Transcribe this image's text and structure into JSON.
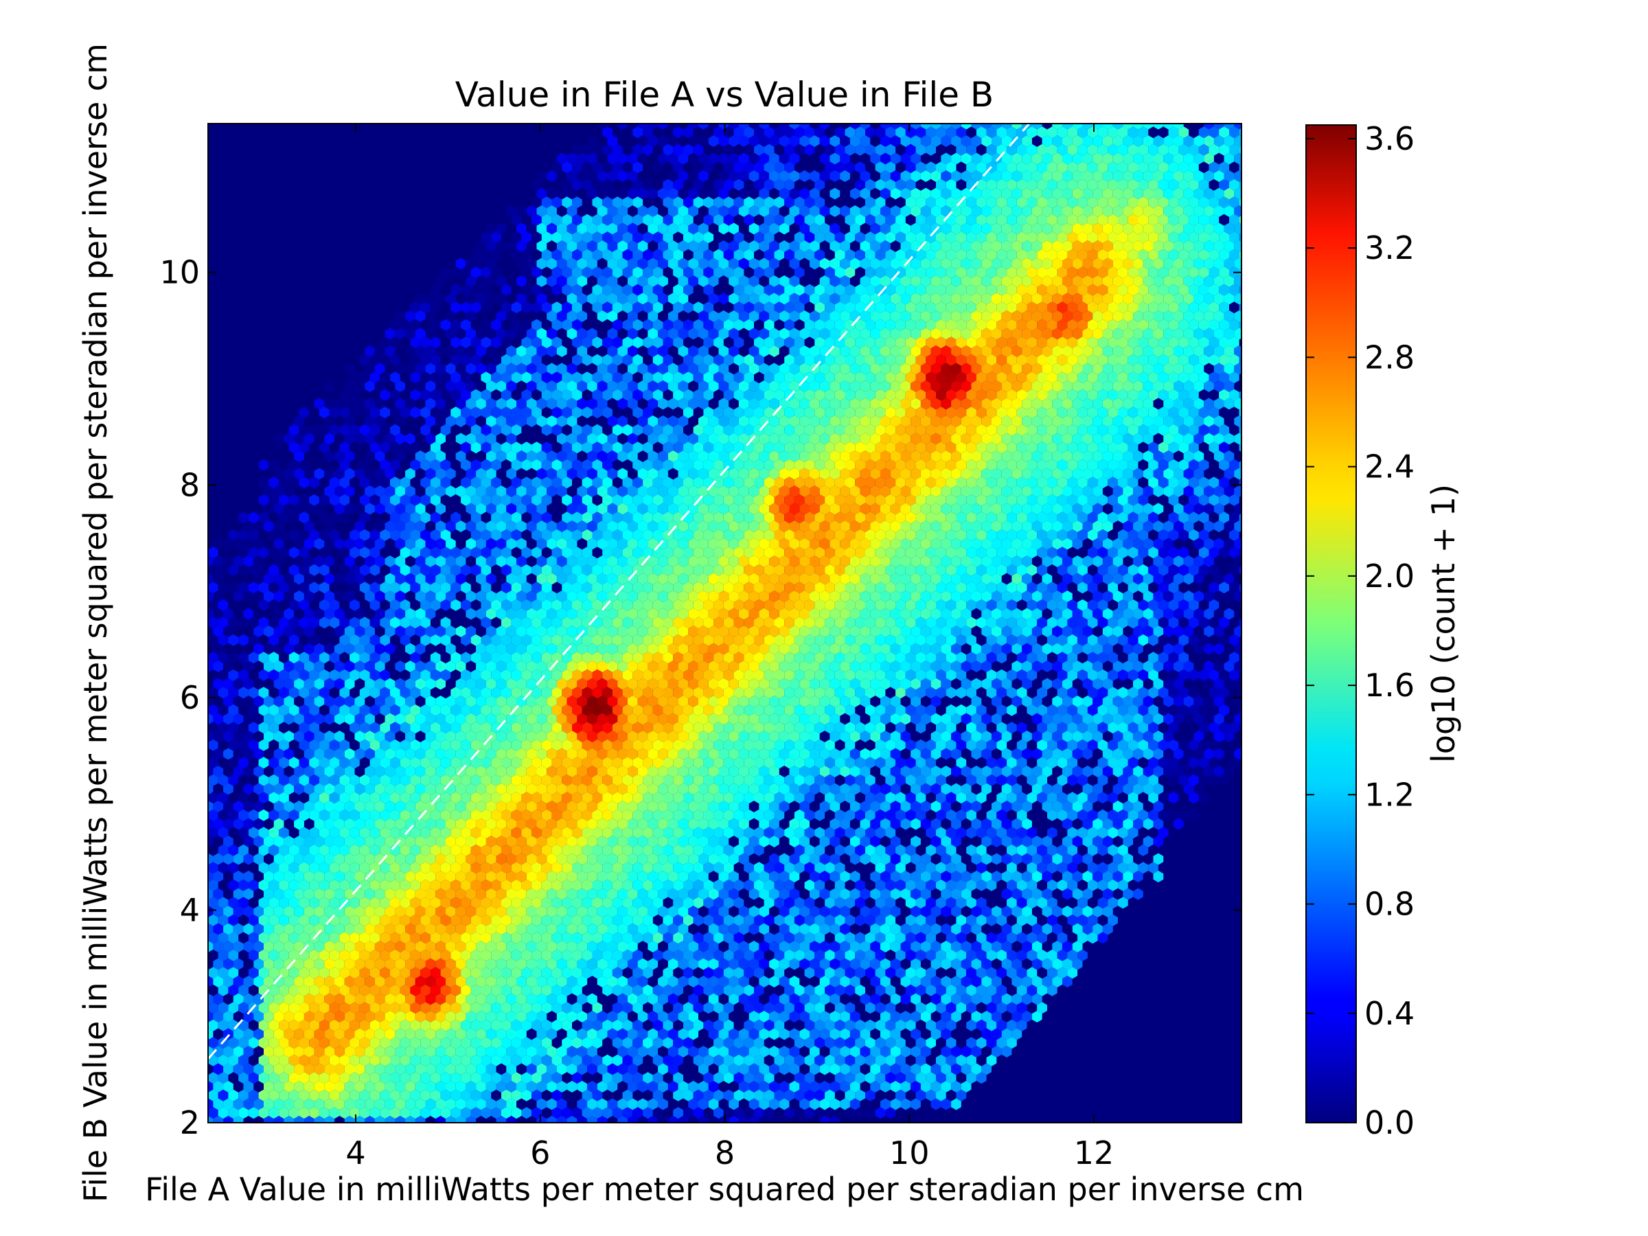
{
  "chart_data": {
    "type": "heatmap",
    "subtype": "hexbin",
    "title": "Value in File A vs Value in File B",
    "xlabel": "File A Value in milliWatts per meter squared per steradian per inverse cm",
    "ylabel": "File B Value in milliWatts per meter squared per steradian per inverse cm",
    "xlim": [
      2.4,
      13.6
    ],
    "ylim": [
      2.0,
      11.4
    ],
    "x_ticks": [
      4,
      6,
      8,
      10,
      12
    ],
    "y_ticks": [
      2,
      4,
      6,
      8,
      10
    ],
    "colormap": "jet",
    "background_color": "#00007f",
    "colorbar": {
      "label": "log10 (count + 1)",
      "range": [
        0.0,
        3.65
      ],
      "ticks": [
        "0.0",
        "0.4",
        "0.8",
        "1.2",
        "1.6",
        "2.0",
        "2.4",
        "2.8",
        "3.2",
        "3.6"
      ]
    },
    "reference_line": {
      "style": "dashed",
      "color": "#ffffff",
      "from": [
        2.4,
        2.6
      ],
      "to": [
        11.3,
        11.4
      ]
    },
    "density_model": {
      "description": "estimated log10(count+1) field",
      "peaks": [
        {
          "x": 6.6,
          "y": 5.9,
          "value": 3.6
        },
        {
          "x": 10.4,
          "y": 9.0,
          "value": 3.55
        },
        {
          "x": 4.8,
          "y": 3.3,
          "value": 3.2
        },
        {
          "x": 11.7,
          "y": 9.6,
          "value": 3.0
        },
        {
          "x": 8.8,
          "y": 7.8,
          "value": 3.0
        },
        {
          "x": 12.5,
          "y": 10.4,
          "value": 2.3
        }
      ],
      "ridge_from": [
        3.6,
        2.8
      ],
      "ridge_to": [
        12.0,
        10.0
      ],
      "ridge_value": 2.6,
      "main_band_value": 1.9,
      "sparse_value": 0.9
    }
  }
}
